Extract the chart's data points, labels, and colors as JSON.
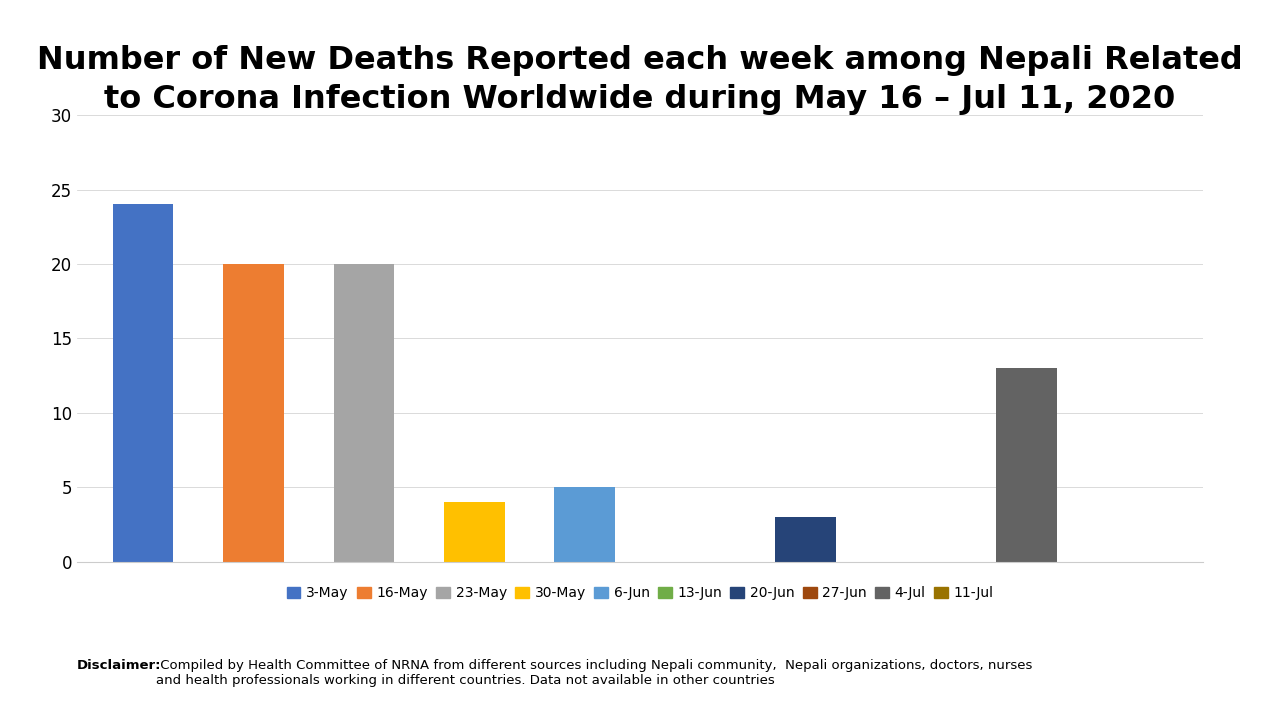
{
  "title": "Number of New Deaths Reported each week among Nepali Related\nto Corona Infection Worldwide during May 16 – Jul 11, 2020",
  "categories": [
    "3-May",
    "16-May",
    "23-May",
    "30-May",
    "6-Jun",
    "13-Jun",
    "20-Jun",
    "27-Jun",
    "4-Jul",
    "11-Jul"
  ],
  "values": [
    24,
    20,
    20,
    4,
    5,
    0,
    3,
    0,
    13,
    0
  ],
  "bar_colors": [
    "#4472C4",
    "#ED7D31",
    "#A5A5A5",
    "#FFC000",
    "#5B9BD5",
    "#70AD47",
    "#264478",
    "#9E480E",
    "#636363",
    "#997300"
  ],
  "ylim": [
    0,
    30
  ],
  "yticks": [
    0,
    5,
    10,
    15,
    20,
    25,
    30
  ],
  "background_color": "#FFFFFF",
  "title_fontsize": 23,
  "tick_fontsize": 12,
  "legend_fontsize": 10,
  "disclaimer_bold": "Disclaimer:",
  "disclaimer_normal": " Compiled by Health Committee of NRNA from different sources including Nepali community,  Nepali organizations, doctors, nurses\nand health professionals working in different countries. Data not available in other countries"
}
